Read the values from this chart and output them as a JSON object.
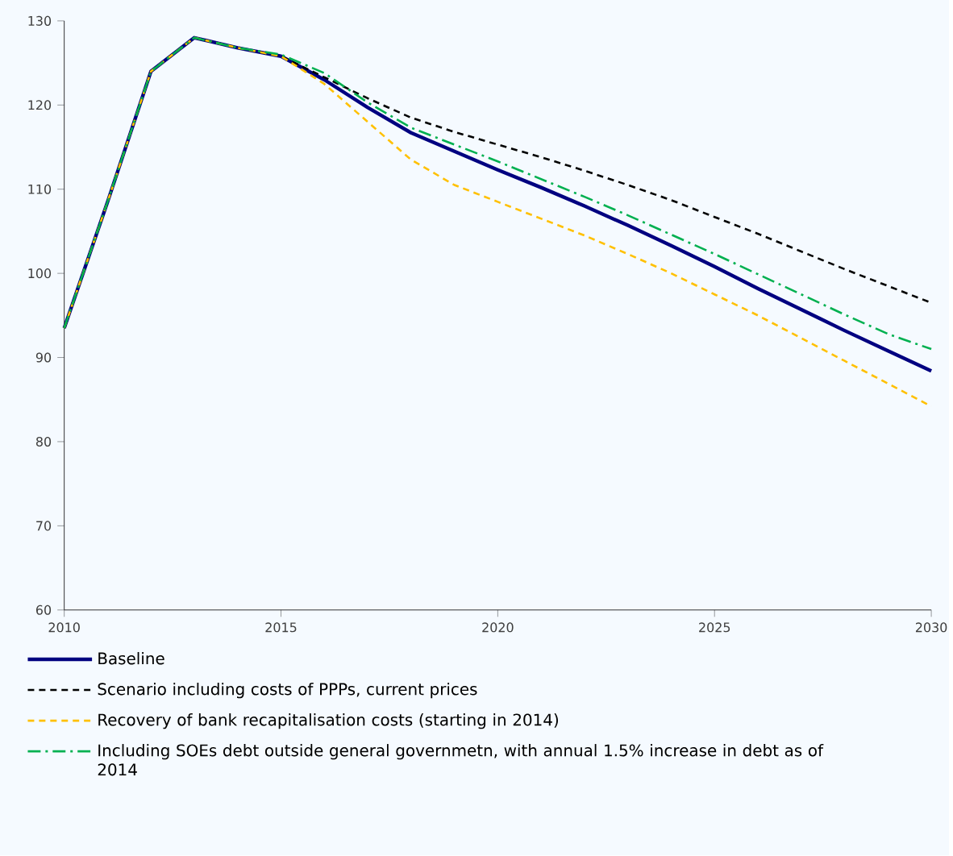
{
  "chart_data": {
    "type": "line",
    "x": [
      2010,
      2011,
      2012,
      2013,
      2014,
      2015,
      2016,
      2017,
      2018,
      2019,
      2020,
      2021,
      2022,
      2023,
      2024,
      2025,
      2026,
      2027,
      2028,
      2029,
      2030
    ],
    "series": [
      {
        "name": "Baseline",
        "color": "#000080",
        "line_style": "solid",
        "values": [
          93.5,
          108.5,
          124,
          128,
          126.8,
          125.8,
          123,
          119.7,
          116.7,
          114.5,
          112.3,
          110.2,
          108,
          105.7,
          103.3,
          100.8,
          98.2,
          95.7,
          93.2,
          90.8,
          88.4
        ]
      },
      {
        "name": "Scenario including costs of PPPs, current prices",
        "color": "#000000",
        "line_style": "dashed",
        "values": [
          93.5,
          108.5,
          124,
          128,
          126.8,
          125.8,
          123.3,
          120.8,
          118.5,
          116.8,
          115.3,
          113.8,
          112.2,
          110.5,
          108.7,
          106.7,
          104.7,
          102.6,
          100.5,
          98.5,
          96.5
        ]
      },
      {
        "name": "Recovery of bank recapitalisation costs (starting in 2014)",
        "color": "#ffc000",
        "line_style": "dashed",
        "values": [
          93.5,
          108.5,
          124,
          128,
          126.8,
          125.8,
          122.5,
          118,
          113.5,
          110.5,
          108.5,
          106.5,
          104.5,
          102.3,
          100,
          97.5,
          95,
          92.3,
          89.6,
          86.9,
          84.2
        ]
      },
      {
        "name": "Including SOEs debt outside general governmetn, with annual 1.5% increase in debt as of 2014",
        "color": "#00b050",
        "line_style": "dashdot",
        "values": [
          93.5,
          108.5,
          124,
          128,
          126.8,
          126,
          123.8,
          120.3,
          117.3,
          115.3,
          113.3,
          111.2,
          109.1,
          106.9,
          104.6,
          102.3,
          99.9,
          97.5,
          95.1,
          92.8,
          91.0
        ]
      }
    ],
    "xlim": [
      2010,
      2030
    ],
    "xticks": [
      2010,
      2015,
      2020,
      2025,
      2030
    ],
    "ylim": [
      60,
      130
    ],
    "yticks": [
      60,
      70,
      80,
      90,
      100,
      110,
      120,
      130
    ],
    "grid": false,
    "legend": "bottom",
    "marker": "none"
  }
}
